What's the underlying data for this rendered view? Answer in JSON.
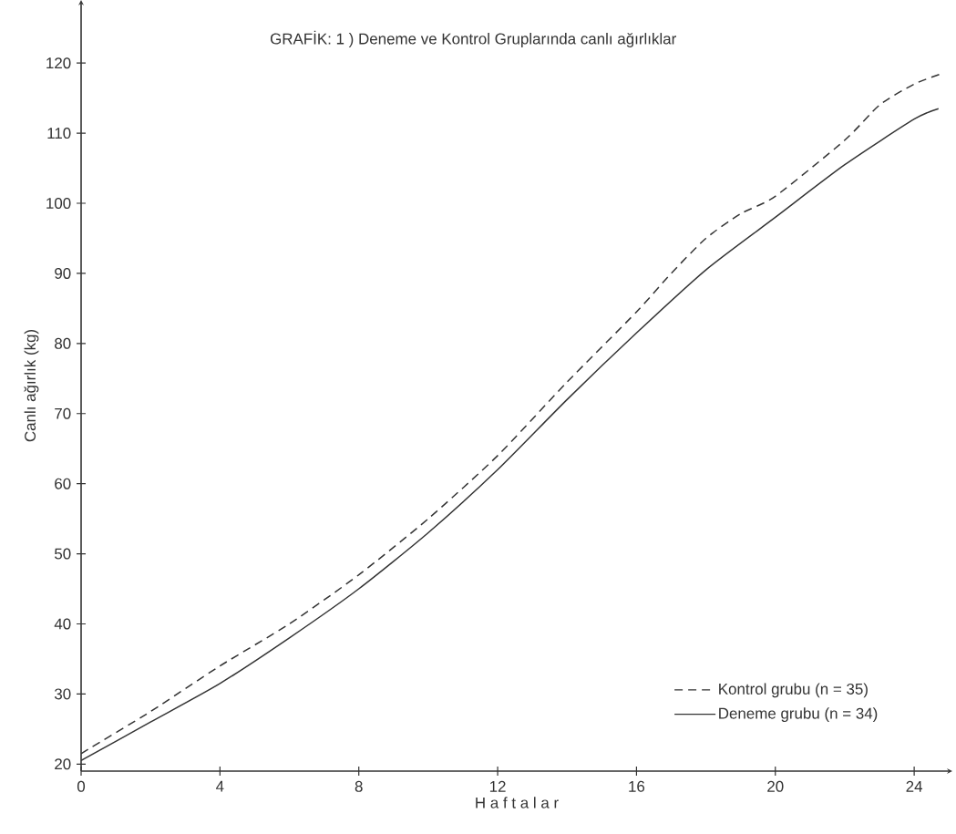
{
  "chart_data": {
    "type": "line",
    "title": "GRAFİK: 1 ) Deneme ve Kontrol Gruplarında canlı ağırlıklar",
    "xlabel": "H a f t a l a r",
    "ylabel": "Canlı  ağırlık  (kg)",
    "xlim": [
      0,
      25.1
    ],
    "ylim": [
      19,
      129
    ],
    "xticks": [
      0,
      4,
      8,
      12,
      16,
      20,
      24
    ],
    "yticks": [
      20,
      30,
      40,
      50,
      60,
      70,
      80,
      90,
      100,
      110,
      120
    ],
    "grid": false,
    "legend": "bottom right",
    "marker": "none",
    "series": [
      {
        "name": "Kontrol grubu  (n =  35)",
        "color": "#333333",
        "line_style": "dashed",
        "x": [
          0,
          2,
          4,
          6,
          8,
          10,
          12,
          14,
          16,
          17,
          18,
          19,
          20,
          22,
          23,
          24,
          24.8
        ],
        "values": [
          21.5,
          27.5,
          34,
          40,
          47,
          55,
          64,
          74.5,
          84.5,
          90,
          95,
          98.5,
          101,
          109,
          114,
          117,
          118.5
        ]
      },
      {
        "name": "Deneme grubu (n =  34)",
        "color": "#333333",
        "line_style": "solid",
        "x": [
          0,
          2,
          4,
          6,
          8,
          10,
          12,
          14,
          16,
          18,
          20,
          22,
          24,
          24.7
        ],
        "values": [
          20.5,
          26,
          31.5,
          38,
          45,
          53,
          62,
          72,
          81.5,
          90.5,
          98,
          105.5,
          112,
          113.5
        ]
      }
    ]
  }
}
